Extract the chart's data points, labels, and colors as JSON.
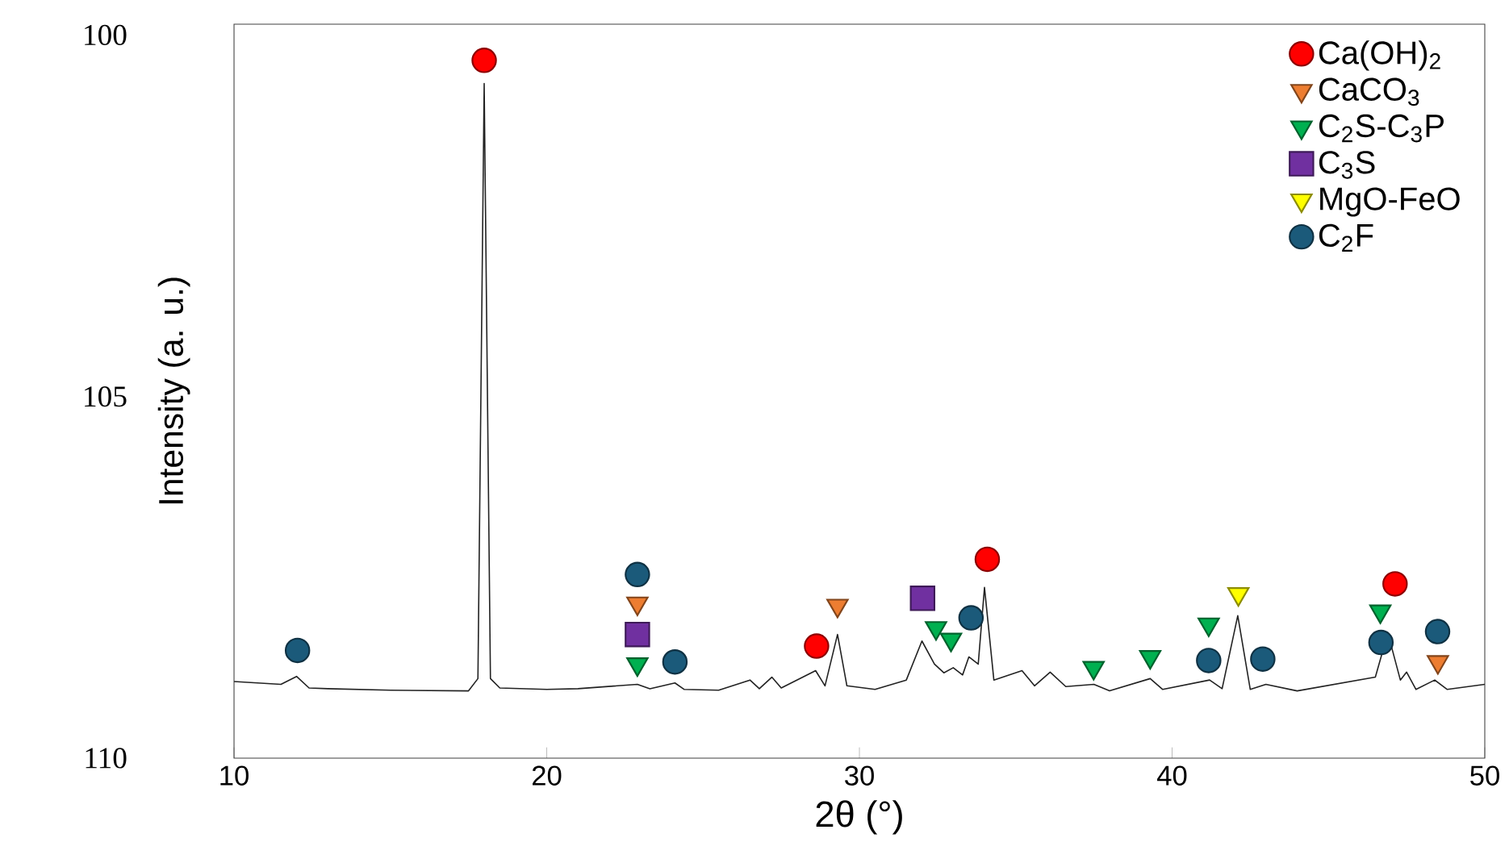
{
  "chart_data": {
    "type": "line",
    "xlabel": "2θ (°)",
    "ylabel": "Intensity (a. u.)",
    "xlim": [
      10,
      50
    ],
    "xticks": [
      10,
      20,
      30,
      40,
      50
    ],
    "ylim": [
      110,
      99.85
    ],
    "yticks": [
      100,
      105,
      110
    ],
    "grid": false,
    "legend": "top right",
    "series": [
      {
        "color": "#222222",
        "line_style": "solid",
        "x": [
          10,
          11.5,
          12.0,
          12.4,
          13,
          15,
          17.5,
          17.8,
          18.0,
          18.2,
          18.5,
          20,
          21,
          22.9,
          23.3,
          24.1,
          24.4,
          25.5,
          26.5,
          26.8,
          27.2,
          27.5,
          28.6,
          28.9,
          29.3,
          29.6,
          30.5,
          31.5,
          32.0,
          32.4,
          32.7,
          33.0,
          33.3,
          33.5,
          33.8,
          34.0,
          34.3,
          35.2,
          35.6,
          36.1,
          36.6,
          37.5,
          38.0,
          39.3,
          39.7,
          41.2,
          41.6,
          42.1,
          42.5,
          43.0,
          44,
          46.5,
          46.9,
          47.3,
          47.5,
          47.8,
          48.4,
          48.8,
          50
        ],
        "values": [
          108.94,
          108.98,
          108.87,
          109.03,
          109.04,
          109.06,
          109.07,
          108.9,
          100.67,
          108.9,
          109.03,
          109.05,
          109.04,
          108.98,
          109.04,
          108.96,
          109.05,
          109.06,
          108.92,
          109.04,
          108.88,
          109.03,
          108.79,
          109.0,
          108.29,
          109.0,
          109.05,
          108.92,
          108.38,
          108.7,
          108.82,
          108.75,
          108.85,
          108.6,
          108.7,
          107.64,
          108.92,
          108.79,
          109.0,
          108.81,
          109.01,
          108.98,
          109.07,
          108.9,
          109.05,
          108.92,
          109.04,
          108.03,
          109.05,
          108.98,
          109.07,
          108.88,
          108.27,
          108.92,
          108.81,
          109.05,
          108.92,
          109.05,
          108.98
        ]
      },
      {
        "type": "scatter",
        "name": "Ca(OH)$_{2}$",
        "color": "#ff0000",
        "marker": "circle",
        "x": [
          18.0,
          28.63,
          34.09,
          47.13
        ],
        "values": [
          100.35,
          108.45,
          107.25,
          107.59
        ]
      },
      {
        "type": "scatter",
        "name": "CaCO$_{3}$",
        "color": "#ed7d31",
        "marker": "triangle",
        "x": [
          22.9,
          29.3,
          48.5
        ],
        "values": [
          107.86,
          107.89,
          108.67
        ]
      },
      {
        "type": "scatter",
        "name": "C$_{2}$S-C$_{3}$P",
        "color": "#00b050",
        "marker": "triangle",
        "x": [
          22.9,
          32.45,
          32.93,
          37.49,
          39.3,
          41.17,
          46.66
        ],
        "values": [
          108.7,
          108.2,
          108.36,
          108.75,
          108.6,
          108.15,
          107.97
        ]
      },
      {
        "type": "scatter",
        "name": "C$_{3}$S",
        "color": "#7030a0",
        "marker": "square",
        "x": [
          22.9,
          32.02
        ],
        "values": [
          108.29,
          107.79
        ]
      },
      {
        "type": "scatter",
        "name": "MgO-FeO",
        "color": "#ffff00",
        "marker": "triangle",
        "x": [
          42.12
        ],
        "values": [
          107.73
        ]
      },
      {
        "type": "scatter",
        "name": "C$_{2}$F",
        "color": "#1b5a7a",
        "marker": "circle",
        "x": [
          12.03,
          22.9,
          24.1,
          33.57,
          41.17,
          42.9,
          46.68,
          48.49
        ],
        "values": [
          108.51,
          107.46,
          108.67,
          108.06,
          108.65,
          108.63,
          108.4,
          108.25
        ]
      }
    ]
  }
}
